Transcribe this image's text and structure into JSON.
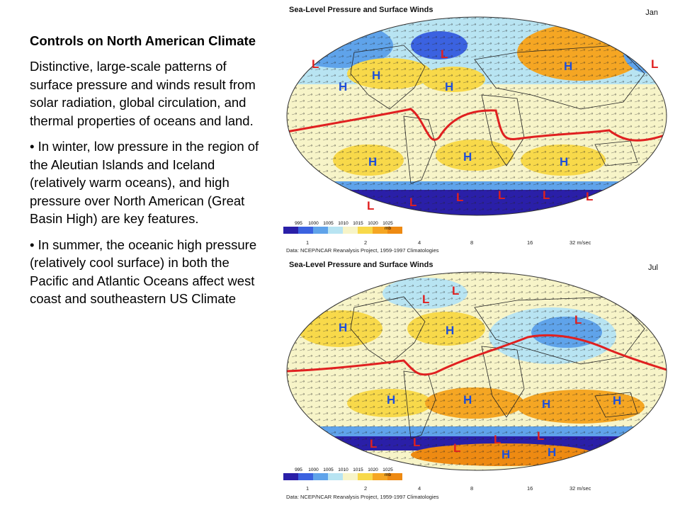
{
  "slide": {
    "title": "Controls on North American Climate",
    "paragraphs": [
      "Distinctive, large-scale patterns of surface pressure and winds result from solar radiation, global circulation, and thermal properties of oceans and land.",
      "• In winter, low pressure in the region of the Aleutian Islands and Iceland (relatively warm oceans), and high pressure over North American (Great Basin High) are key features.",
      "• In summer, the oceanic high pressure (relatively cool surface) in both the Pacific and Atlantic Oceans affect west coast and southeastern US Climate"
    ]
  },
  "maps": [
    {
      "title": "Sea-Level Pressure and Surface Winds",
      "month": "Jan",
      "legend": {
        "labels": [
          "995",
          "1000",
          "1005",
          "1010",
          "1015",
          "1020",
          "1025 mb"
        ],
        "colors": [
          "#2a1fa8",
          "#3b62e0",
          "#5fa3ea",
          "#b8e4f2",
          "#f7f4c8",
          "#f8d94a",
          "#f5a623",
          "#ee8a12"
        ]
      },
      "vector_scale": [
        "1",
        "2",
        "4",
        "8",
        "16",
        "32 m/sec"
      ],
      "source": "Data:  NCEP/NCAR Reanalysis Project, 1959-1997 Climatologies",
      "pressure_marks": [
        {
          "type": "L",
          "label": "L"
        },
        {
          "type": "L",
          "label": "L"
        },
        {
          "type": "L",
          "label": "L"
        },
        {
          "type": "H",
          "label": "H"
        },
        {
          "type": "H",
          "label": "H"
        },
        {
          "type": "H",
          "label": "H"
        },
        {
          "type": "H",
          "label": "H"
        },
        {
          "type": "H",
          "label": "H"
        },
        {
          "type": "H",
          "label": "H"
        },
        {
          "type": "H",
          "label": "H"
        },
        {
          "type": "L",
          "label": "L"
        },
        {
          "type": "L",
          "label": "L"
        },
        {
          "type": "L",
          "label": "L"
        },
        {
          "type": "L",
          "label": "L"
        },
        {
          "type": "L",
          "label": "L"
        },
        {
          "type": "L",
          "label": "L"
        }
      ]
    },
    {
      "title": "Sea-Level Pressure and Surface Winds",
      "month": "Jul",
      "legend": {
        "labels": [
          "995",
          "1000",
          "1005",
          "1010",
          "1015",
          "1020",
          "1025 mb"
        ],
        "colors": [
          "#2a1fa8",
          "#3b62e0",
          "#5fa3ea",
          "#b8e4f2",
          "#f7f4c8",
          "#f8d94a",
          "#f5a623",
          "#ee8a12"
        ]
      },
      "vector_scale": [
        "1",
        "2",
        "4",
        "8",
        "16",
        "32 m/sec"
      ],
      "source": "Data:  NCEP/NCAR Reanalysis Project, 1959-1997 Climatologies",
      "pressure_marks": [
        {
          "type": "L",
          "label": "L"
        },
        {
          "type": "L",
          "label": "L"
        },
        {
          "type": "H",
          "label": "H"
        },
        {
          "type": "H",
          "label": "H"
        },
        {
          "type": "L",
          "label": "L"
        },
        {
          "type": "H",
          "label": "H"
        },
        {
          "type": "H",
          "label": "H"
        },
        {
          "type": "H",
          "label": "H"
        },
        {
          "type": "H",
          "label": "H"
        },
        {
          "type": "L",
          "label": "L"
        },
        {
          "type": "L",
          "label": "L"
        },
        {
          "type": "L",
          "label": "L"
        },
        {
          "type": "L",
          "label": "L"
        },
        {
          "type": "L",
          "label": "L"
        },
        {
          "type": "H",
          "label": "H"
        },
        {
          "type": "H",
          "label": "H"
        }
      ]
    }
  ]
}
